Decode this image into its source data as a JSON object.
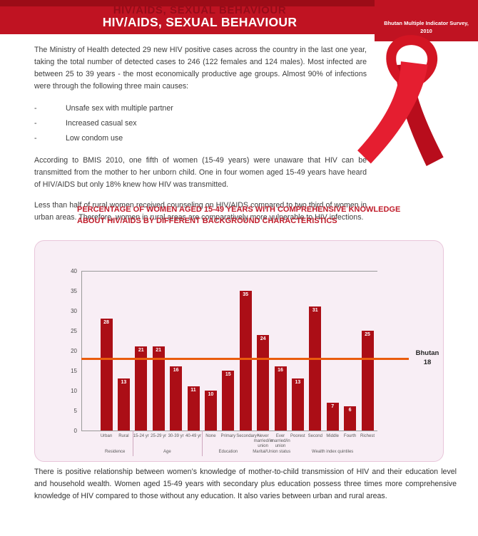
{
  "header": {
    "title": "HIV/AIDS, SEXUAL BEHAVIOUR",
    "badge_line1": "Bhutan Multiple Indicator Survey,",
    "badge_line2": "2010"
  },
  "intro": {
    "para1": "The Ministry of Health detected 29 new HIV positive cases across the country in the last one year, taking the total number of detected cases to 246 (122 females and 124 males). Most infected are between 25 to 39 years - the most economically productive age groups. Almost 90% of infections were through the following three main causes:",
    "bullet_marker": "-",
    "bullets": [
      "Unsafe sex with multiple partner",
      "Increased casual sex",
      "Low condom use"
    ],
    "para2": "According to BMIS 2010, one fifth of women (15-49 years) were unaware that HIV can be transmitted from the mother to her unborn child. One in four women aged 15-49 years have heard of HIV/AIDS but only 18% knew how HIV was transmitted.",
    "para3": "Less than half of rural women received counseling on HIV/AIDS compared to two third of women in urban areas. Therefore, women in rural areas are comparatively more vulnerable to HIV infections."
  },
  "chart_heading": "PERCENTAGE OF WOMEN AGED 15-49 YEARS WITH COMPREHENSIVE KNOWLEDGE ABOUT HIV/AIDS BY DIFFERENT BACKGROUND CHARACTERISTICS",
  "chart_data": {
    "type": "bar",
    "title": "Percentage of women aged 15-49 years with comprehensive knowledge about HIV/AIDS by different background characteristics",
    "ylabel": "",
    "xlabel": "",
    "ylim": [
      0,
      40
    ],
    "ytick_step": 5,
    "grid": "top-border-only",
    "legend": "none",
    "groups": [
      {
        "label": "Residence",
        "categories": [
          "Urban",
          "Rural"
        ],
        "values": [
          28,
          13
        ]
      },
      {
        "label": "Age",
        "categories": [
          "15-24 yr",
          "25-29 yr",
          "30-39 yr",
          "40-49 yr"
        ],
        "values": [
          21,
          21,
          16,
          11
        ]
      },
      {
        "label": "Education",
        "categories": [
          "None",
          "Primary",
          "Secondary+"
        ],
        "values": [
          10,
          15,
          35
        ]
      },
      {
        "label": "Marital/Union status",
        "categories": [
          "Never married/in union",
          "Ever married/in union"
        ],
        "values": [
          24,
          16
        ]
      },
      {
        "label": "Wealth index quintiles",
        "categories": [
          "Poorest",
          "Second",
          "Middle",
          "Fourth",
          "Richest"
        ],
        "values": [
          13,
          31,
          7,
          6,
          25
        ]
      }
    ],
    "reference_line": {
      "label": "Bhutan",
      "value": 18
    },
    "bar_color": "#ab0e16",
    "bar_label_color": "#ffffff",
    "reference_line_color": "#ea5c0d"
  },
  "footer": {
    "para": "There is positive relationship between women’s knowledge of mother-to-child transmission of HIV and their education level and household wealth. Women aged 15-49 years with secondary plus education possess three times more comprehensive knowledge of HIV compared to those without any education. It also varies between urban and rural areas."
  },
  "colors": {
    "header_red": "#c01322",
    "header_dark_red": "#9c0c17",
    "heading_red": "#c01d2b",
    "bar_red": "#ab0e16",
    "reference_orange": "#ea5c0d",
    "chart_background": "#f8eef5"
  }
}
